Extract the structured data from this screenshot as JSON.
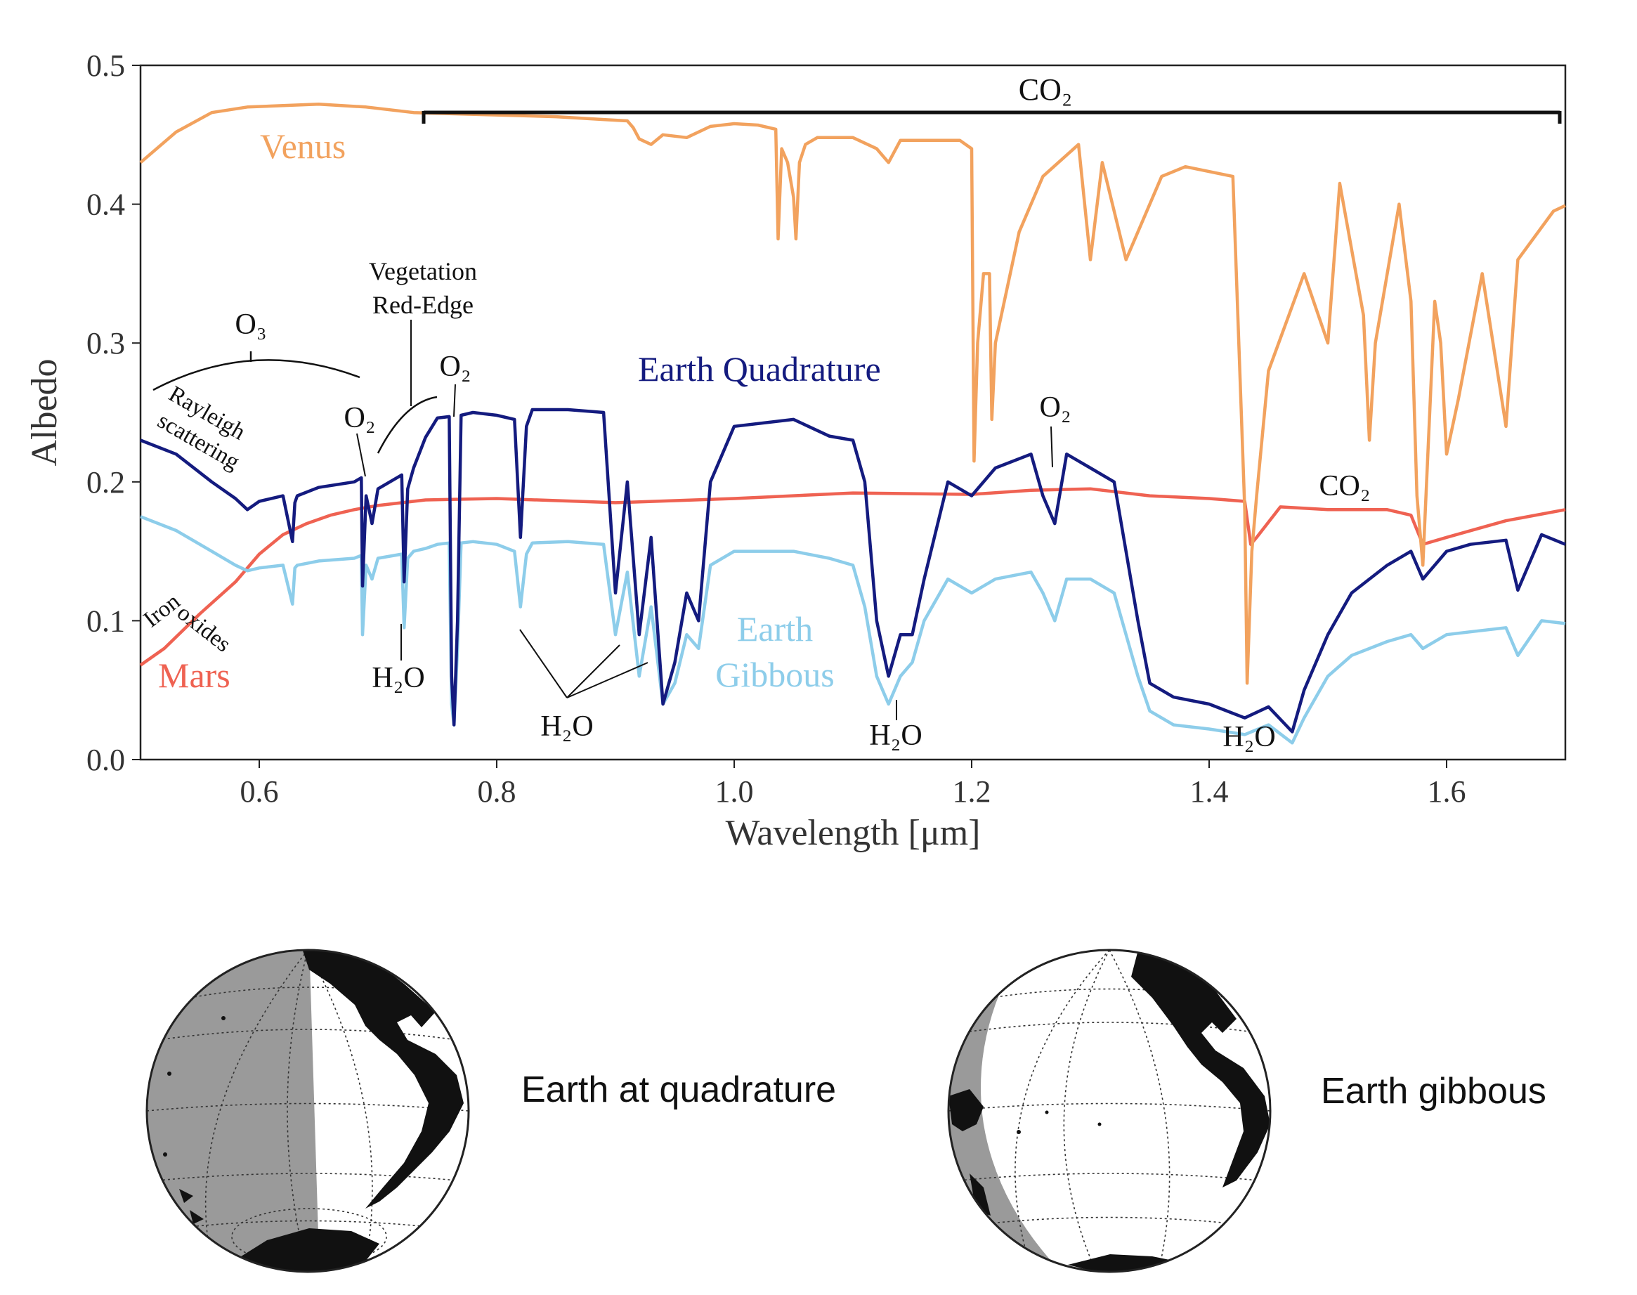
{
  "chart_data": {
    "type": "line",
    "xlabel": "Wavelength [μm]",
    "ylabel": "Albedo",
    "xlim": [
      0.5,
      1.7
    ],
    "ylim": [
      0.0,
      0.5
    ],
    "xticks": [
      0.6,
      0.8,
      1.0,
      1.2,
      1.4,
      1.6
    ],
    "xtick_labels": [
      "0.6",
      "0.8",
      "1.0",
      "1.2",
      "1.4",
      "1.6"
    ],
    "yticks": [
      0.0,
      0.1,
      0.2,
      0.3,
      0.4,
      0.5
    ],
    "ytick_labels": [
      "0.0",
      "0.1",
      "0.2",
      "0.3",
      "0.4",
      "0.5"
    ],
    "grid": false,
    "legend": "none (series labeled inline)",
    "series": [
      {
        "name": "Venus",
        "color": "#f2a25e",
        "x": [
          0.5,
          0.53,
          0.56,
          0.59,
          0.62,
          0.65,
          0.69,
          0.73,
          0.77,
          0.81,
          0.85,
          0.89,
          0.91,
          0.915,
          0.92,
          0.93,
          0.94,
          0.96,
          0.98,
          1.0,
          1.02,
          1.035,
          1.037,
          1.04,
          1.045,
          1.05,
          1.052,
          1.055,
          1.06,
          1.07,
          1.1,
          1.12,
          1.13,
          1.14,
          1.19,
          1.2,
          1.202,
          1.205,
          1.21,
          1.215,
          1.217,
          1.22,
          1.24,
          1.26,
          1.29,
          1.3,
          1.31,
          1.33,
          1.36,
          1.38,
          1.42,
          1.43,
          1.432,
          1.436,
          1.44,
          1.45,
          1.48,
          1.5,
          1.51,
          1.53,
          1.535,
          1.54,
          1.56,
          1.57,
          1.575,
          1.58,
          1.59,
          1.595,
          1.6,
          1.61,
          1.63,
          1.65,
          1.66,
          1.69,
          1.7
        ],
        "y": [
          0.43,
          0.452,
          0.466,
          0.47,
          0.471,
          0.472,
          0.47,
          0.466,
          0.465,
          0.464,
          0.463,
          0.461,
          0.46,
          0.455,
          0.447,
          0.443,
          0.45,
          0.448,
          0.456,
          0.458,
          0.457,
          0.454,
          0.375,
          0.44,
          0.43,
          0.405,
          0.375,
          0.43,
          0.443,
          0.448,
          0.448,
          0.44,
          0.43,
          0.446,
          0.446,
          0.44,
          0.215,
          0.3,
          0.35,
          0.35,
          0.245,
          0.3,
          0.38,
          0.42,
          0.443,
          0.36,
          0.43,
          0.36,
          0.42,
          0.427,
          0.42,
          0.18,
          0.055,
          0.15,
          0.19,
          0.28,
          0.35,
          0.3,
          0.415,
          0.32,
          0.23,
          0.3,
          0.4,
          0.33,
          0.19,
          0.14,
          0.33,
          0.3,
          0.22,
          0.26,
          0.35,
          0.24,
          0.36,
          0.395,
          0.399
        ]
      },
      {
        "name": "Mars",
        "color": "#ef6252",
        "x": [
          0.5,
          0.52,
          0.55,
          0.58,
          0.6,
          0.62,
          0.64,
          0.66,
          0.68,
          0.7,
          0.74,
          0.8,
          0.9,
          1.0,
          1.1,
          1.2,
          1.25,
          1.3,
          1.35,
          1.4,
          1.43,
          1.435,
          1.44,
          1.46,
          1.5,
          1.55,
          1.57,
          1.58,
          1.6,
          1.65,
          1.7
        ],
        "y": [
          0.068,
          0.08,
          0.105,
          0.128,
          0.148,
          0.162,
          0.17,
          0.176,
          0.18,
          0.183,
          0.187,
          0.188,
          0.185,
          0.188,
          0.192,
          0.191,
          0.194,
          0.195,
          0.19,
          0.188,
          0.186,
          0.155,
          0.16,
          0.182,
          0.18,
          0.18,
          0.176,
          0.155,
          0.16,
          0.172,
          0.18
        ]
      },
      {
        "name": "Earth Quadrature",
        "color": "#141b7f",
        "x": [
          0.5,
          0.53,
          0.56,
          0.58,
          0.59,
          0.6,
          0.62,
          0.628,
          0.63,
          0.632,
          0.65,
          0.68,
          0.686,
          0.687,
          0.69,
          0.695,
          0.7,
          0.72,
          0.722,
          0.725,
          0.73,
          0.74,
          0.75,
          0.76,
          0.762,
          0.764,
          0.767,
          0.77,
          0.78,
          0.8,
          0.815,
          0.82,
          0.825,
          0.83,
          0.86,
          0.89,
          0.9,
          0.91,
          0.92,
          0.93,
          0.94,
          0.95,
          0.96,
          0.97,
          0.98,
          1.0,
          1.05,
          1.08,
          1.1,
          1.11,
          1.12,
          1.13,
          1.14,
          1.15,
          1.16,
          1.18,
          1.2,
          1.22,
          1.25,
          1.26,
          1.27,
          1.28,
          1.3,
          1.32,
          1.34,
          1.35,
          1.37,
          1.4,
          1.43,
          1.45,
          1.47,
          1.48,
          1.5,
          1.52,
          1.55,
          1.57,
          1.58,
          1.6,
          1.62,
          1.65,
          1.66,
          1.68,
          1.7
        ],
        "y": [
          0.23,
          0.22,
          0.2,
          0.188,
          0.18,
          0.186,
          0.19,
          0.157,
          0.185,
          0.19,
          0.196,
          0.2,
          0.203,
          0.125,
          0.19,
          0.17,
          0.195,
          0.205,
          0.128,
          0.195,
          0.21,
          0.232,
          0.246,
          0.247,
          0.06,
          0.025,
          0.1,
          0.248,
          0.25,
          0.248,
          0.245,
          0.16,
          0.24,
          0.252,
          0.252,
          0.25,
          0.12,
          0.2,
          0.09,
          0.16,
          0.04,
          0.07,
          0.12,
          0.1,
          0.2,
          0.24,
          0.245,
          0.233,
          0.23,
          0.2,
          0.1,
          0.06,
          0.09,
          0.09,
          0.13,
          0.2,
          0.19,
          0.21,
          0.22,
          0.19,
          0.17,
          0.22,
          0.21,
          0.2,
          0.1,
          0.055,
          0.045,
          0.04,
          0.03,
          0.038,
          0.02,
          0.05,
          0.09,
          0.12,
          0.14,
          0.15,
          0.13,
          0.15,
          0.155,
          0.158,
          0.122,
          0.162,
          0.155
        ]
      },
      {
        "name": "Earth Gibbous",
        "color": "#8dcdea",
        "x": [
          0.5,
          0.53,
          0.56,
          0.58,
          0.59,
          0.6,
          0.62,
          0.628,
          0.63,
          0.632,
          0.65,
          0.68,
          0.686,
          0.687,
          0.69,
          0.695,
          0.7,
          0.72,
          0.722,
          0.725,
          0.73,
          0.74,
          0.75,
          0.76,
          0.762,
          0.764,
          0.767,
          0.77,
          0.78,
          0.8,
          0.815,
          0.82,
          0.825,
          0.83,
          0.86,
          0.89,
          0.9,
          0.91,
          0.92,
          0.93,
          0.94,
          0.95,
          0.96,
          0.97,
          0.98,
          1.0,
          1.05,
          1.08,
          1.1,
          1.11,
          1.12,
          1.13,
          1.14,
          1.15,
          1.16,
          1.18,
          1.2,
          1.22,
          1.25,
          1.26,
          1.27,
          1.28,
          1.3,
          1.32,
          1.34,
          1.35,
          1.37,
          1.4,
          1.43,
          1.45,
          1.47,
          1.48,
          1.5,
          1.52,
          1.55,
          1.57,
          1.58,
          1.6,
          1.62,
          1.65,
          1.66,
          1.68,
          1.7
        ],
        "y": [
          0.175,
          0.165,
          0.15,
          0.14,
          0.136,
          0.138,
          0.14,
          0.112,
          0.138,
          0.14,
          0.143,
          0.145,
          0.147,
          0.09,
          0.14,
          0.13,
          0.145,
          0.148,
          0.095,
          0.145,
          0.15,
          0.152,
          0.155,
          0.156,
          0.04,
          0.025,
          0.08,
          0.156,
          0.157,
          0.155,
          0.15,
          0.11,
          0.148,
          0.156,
          0.157,
          0.155,
          0.09,
          0.135,
          0.06,
          0.11,
          0.04,
          0.055,
          0.09,
          0.08,
          0.14,
          0.15,
          0.15,
          0.145,
          0.14,
          0.11,
          0.06,
          0.04,
          0.06,
          0.07,
          0.1,
          0.13,
          0.12,
          0.13,
          0.135,
          0.12,
          0.1,
          0.13,
          0.13,
          0.12,
          0.06,
          0.035,
          0.025,
          0.022,
          0.018,
          0.025,
          0.012,
          0.03,
          0.06,
          0.075,
          0.085,
          0.09,
          0.08,
          0.09,
          0.092,
          0.095,
          0.075,
          0.1,
          0.098
        ]
      }
    ],
    "annotations": {
      "co2_top": "CO₂",
      "co2_mars": "CO₂",
      "o3": "O₃",
      "vegetation_line1": "Vegetation",
      "vegetation_line2": "Red-Edge",
      "rayleigh_line1": "Rayleigh",
      "rayleigh_line2": "scattering",
      "o2_a": "O₂",
      "o2_b": "O₂",
      "o2_c": "O₂",
      "h2o_a": "H₂O",
      "h2o_b": "H₂O",
      "h2o_c": "H₂O",
      "h2o_d": "H₂O",
      "iron_line1": "Iron",
      "iron_line2": "oxides",
      "label_venus": "Venus",
      "label_mars": "Mars",
      "label_earth_quadrature": "Earth Quadrature",
      "label_earth_gibbous_line1": "Earth",
      "label_earth_gibbous_line2": "Gibbous"
    }
  },
  "globes": {
    "quadrature_caption": "Earth at quadrature",
    "gibbous_caption": "Earth gibbous",
    "night_color": "#9a9a9a",
    "land_color": "#111111"
  }
}
